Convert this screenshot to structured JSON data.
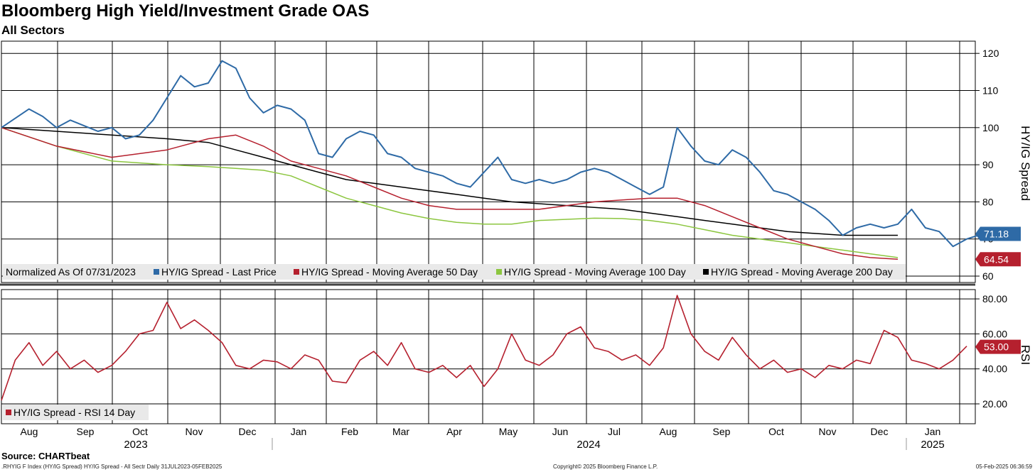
{
  "header": {
    "title": "Bloomberg High Yield/Investment Grade OAS",
    "subtitle": "All Sectors"
  },
  "footer": {
    "source": "Source: CHARTbeat",
    "left_note": ".RHYIG F Index (HY/IG Spread) HY/IG Spread - All Sectr  Daily 31JUL2023-05FEB2025",
    "copyright": "Copyright© 2025 Bloomberg Finance L.P.",
    "timestamp": "05-Feb-2025 06:36:59"
  },
  "colors": {
    "last_price": "#2e6aa6",
    "ma50": "#b5202e",
    "ma100": "#8cc63f",
    "ma200": "#000000",
    "rsi": "#b5202e",
    "grid": "#000000",
    "legend_bg": "#e9e9e9"
  },
  "chart_data": [
    {
      "type": "line",
      "title": "Bloomberg High Yield/Investment Grade OAS",
      "ylabel": "HY/IG Spread",
      "ylim": [
        58,
        123
      ],
      "yticks": [
        "60",
        "70",
        "80",
        "90",
        "100",
        "110",
        "120"
      ],
      "legend_prefix": "Normalized As Of 07/31/2023",
      "months": [
        "Aug",
        "Sep",
        "Oct",
        "Nov",
        "Dec",
        "Jan",
        "Feb",
        "Mar",
        "Apr",
        "May",
        "Jun",
        "Jul",
        "Aug",
        "Sep",
        "Oct",
        "Nov",
        "Dec",
        "Jan"
      ],
      "years": [
        "2023",
        "2024",
        "2025"
      ],
      "series": [
        {
          "name": "HY/IG Spread - Last Price",
          "color_key": "last_price",
          "last_value": "71.18",
          "points": [
            [
              0,
              100
            ],
            [
              2,
              105
            ],
            [
              3,
              103
            ],
            [
              4,
              100
            ],
            [
              5,
              102
            ],
            [
              7,
              99
            ],
            [
              8,
              100
            ],
            [
              9,
              97
            ],
            [
              10,
              98
            ],
            [
              11,
              102
            ],
            [
              12,
              108
            ],
            [
              13,
              114
            ],
            [
              14,
              111
            ],
            [
              15,
              112
            ],
            [
              16,
              118
            ],
            [
              17,
              116
            ],
            [
              18,
              108
            ],
            [
              19,
              104
            ],
            [
              20,
              106
            ],
            [
              21,
              105
            ],
            [
              22,
              102
            ],
            [
              23,
              93
            ],
            [
              24,
              92
            ],
            [
              25,
              97
            ],
            [
              26,
              99
            ],
            [
              27,
              98
            ],
            [
              28,
              93
            ],
            [
              29,
              92
            ],
            [
              30,
              89
            ],
            [
              31,
              88
            ],
            [
              32,
              87
            ],
            [
              33,
              85
            ],
            [
              34,
              84
            ],
            [
              35,
              88
            ],
            [
              36,
              92
            ],
            [
              37,
              86
            ],
            [
              38,
              85
            ],
            [
              39,
              86
            ],
            [
              40,
              85
            ],
            [
              41,
              86
            ],
            [
              42,
              88
            ],
            [
              43,
              89
            ],
            [
              44,
              88
            ],
            [
              45,
              86
            ],
            [
              46,
              84
            ],
            [
              47,
              82
            ],
            [
              48,
              84
            ],
            [
              49,
              100
            ],
            [
              50,
              95
            ],
            [
              51,
              91
            ],
            [
              52,
              90
            ],
            [
              53,
              94
            ],
            [
              54,
              92
            ],
            [
              55,
              88
            ],
            [
              56,
              83
            ],
            [
              57,
              82
            ],
            [
              58,
              80
            ],
            [
              59,
              78
            ],
            [
              60,
              75
            ],
            [
              61,
              71
            ],
            [
              62,
              73
            ],
            [
              63,
              74
            ],
            [
              64,
              73
            ],
            [
              65,
              74
            ],
            [
              66,
              78
            ],
            [
              67,
              73
            ],
            [
              68,
              72
            ],
            [
              69,
              68
            ],
            [
              70,
              70
            ],
            [
              71,
              71.18
            ]
          ]
        },
        {
          "name": "HY/IG Spread - Moving Average 50 Day",
          "color_key": "ma50",
          "last_value": "64.54",
          "points": [
            [
              0,
              100
            ],
            [
              4,
              95
            ],
            [
              8,
              92
            ],
            [
              12,
              94
            ],
            [
              15,
              97
            ],
            [
              17,
              98
            ],
            [
              19,
              95
            ],
            [
              21,
              91
            ],
            [
              23,
              89
            ],
            [
              25,
              87
            ],
            [
              27,
              84
            ],
            [
              29,
              81
            ],
            [
              31,
              79
            ],
            [
              33,
              78
            ],
            [
              35,
              78
            ],
            [
              37,
              78
            ],
            [
              39,
              78
            ],
            [
              41,
              79
            ],
            [
              43,
              80
            ],
            [
              45,
              80.5
            ],
            [
              47,
              81
            ],
            [
              49,
              81
            ],
            [
              51,
              79
            ],
            [
              53,
              76
            ],
            [
              55,
              73
            ],
            [
              57,
              70
            ],
            [
              59,
              68
            ],
            [
              61,
              66
            ],
            [
              63,
              65
            ],
            [
              65,
              64.54
            ]
          ]
        },
        {
          "name": "HY/IG Spread - Moving Average 100 Day",
          "color_key": "ma100",
          "last_value": "",
          "points": [
            [
              0,
              100
            ],
            [
              4,
              95
            ],
            [
              8,
              91
            ],
            [
              12,
              90
            ],
            [
              15,
              89.5
            ],
            [
              17,
              89
            ],
            [
              19,
              88.5
            ],
            [
              21,
              87
            ],
            [
              23,
              84
            ],
            [
              25,
              81
            ],
            [
              27,
              79
            ],
            [
              29,
              77
            ],
            [
              31,
              75.5
            ],
            [
              33,
              74.5
            ],
            [
              35,
              74
            ],
            [
              37,
              74
            ],
            [
              39,
              75
            ],
            [
              41,
              75.3
            ],
            [
              43,
              75.6
            ],
            [
              45,
              75.5
            ],
            [
              47,
              75
            ],
            [
              49,
              74
            ],
            [
              51,
              72.5
            ],
            [
              53,
              71
            ],
            [
              55,
              70
            ],
            [
              57,
              69
            ],
            [
              59,
              68
            ],
            [
              61,
              67
            ],
            [
              63,
              66
            ],
            [
              65,
              65
            ]
          ]
        },
        {
          "name": "HY/IG Spread - Moving Average 200 Day",
          "color_key": "ma200",
          "last_value": "",
          "points": [
            [
              0,
              100
            ],
            [
              4,
              99
            ],
            [
              8,
              98
            ],
            [
              12,
              97
            ],
            [
              15,
              96
            ],
            [
              17,
              94
            ],
            [
              19,
              92
            ],
            [
              21,
              90
            ],
            [
              23,
              88
            ],
            [
              25,
              86
            ],
            [
              27,
              85
            ],
            [
              29,
              84
            ],
            [
              31,
              83
            ],
            [
              33,
              82
            ],
            [
              35,
              81
            ],
            [
              37,
              80
            ],
            [
              39,
              79.5
            ],
            [
              41,
              79
            ],
            [
              43,
              78.5
            ],
            [
              45,
              78
            ],
            [
              47,
              77
            ],
            [
              49,
              76
            ],
            [
              51,
              75
            ],
            [
              53,
              74
            ],
            [
              55,
              73
            ],
            [
              57,
              72
            ],
            [
              59,
              71.5
            ],
            [
              61,
              71
            ],
            [
              63,
              71
            ],
            [
              65,
              71
            ]
          ]
        }
      ]
    },
    {
      "type": "line",
      "title": "RSI",
      "ylabel": "RSI",
      "ylim": [
        10,
        85
      ],
      "yticks": [
        "20.00",
        "40.00",
        "60.00",
        "80.00"
      ],
      "series": [
        {
          "name": "HY/IG Spread - RSI 14 Day",
          "color_key": "rsi",
          "last_value": "53.00",
          "points": [
            [
              0,
              22
            ],
            [
              1,
              45
            ],
            [
              2,
              55
            ],
            [
              3,
              42
            ],
            [
              4,
              50
            ],
            [
              5,
              40
            ],
            [
              6,
              45
            ],
            [
              7,
              38
            ],
            [
              8,
              42
            ],
            [
              9,
              50
            ],
            [
              10,
              60
            ],
            [
              11,
              62
            ],
            [
              12,
              78
            ],
            [
              13,
              63
            ],
            [
              14,
              68
            ],
            [
              15,
              62
            ],
            [
              16,
              55
            ],
            [
              17,
              42
            ],
            [
              18,
              40
            ],
            [
              19,
              45
            ],
            [
              20,
              44
            ],
            [
              21,
              40
            ],
            [
              22,
              48
            ],
            [
              23,
              45
            ],
            [
              24,
              33
            ],
            [
              25,
              32
            ],
            [
              26,
              45
            ],
            [
              27,
              50
            ],
            [
              28,
              42
            ],
            [
              29,
              55
            ],
            [
              30,
              40
            ],
            [
              31,
              38
            ],
            [
              32,
              42
            ],
            [
              33,
              35
            ],
            [
              34,
              42
            ],
            [
              35,
              30
            ],
            [
              36,
              40
            ],
            [
              37,
              60
            ],
            [
              38,
              45
            ],
            [
              39,
              42
            ],
            [
              40,
              48
            ],
            [
              41,
              60
            ],
            [
              42,
              64
            ],
            [
              43,
              52
            ],
            [
              44,
              50
            ],
            [
              45,
              45
            ],
            [
              46,
              48
            ],
            [
              47,
              42
            ],
            [
              48,
              52
            ],
            [
              49,
              82
            ],
            [
              50,
              60
            ],
            [
              51,
              50
            ],
            [
              52,
              45
            ],
            [
              53,
              58
            ],
            [
              54,
              48
            ],
            [
              55,
              40
            ],
            [
              56,
              45
            ],
            [
              57,
              38
            ],
            [
              58,
              40
            ],
            [
              59,
              35
            ],
            [
              60,
              42
            ],
            [
              61,
              40
            ],
            [
              62,
              45
            ],
            [
              63,
              43
            ],
            [
              64,
              62
            ],
            [
              65,
              58
            ],
            [
              66,
              45
            ],
            [
              67,
              43
            ],
            [
              68,
              40
            ],
            [
              69,
              45
            ],
            [
              70,
              53
            ]
          ]
        }
      ]
    }
  ]
}
